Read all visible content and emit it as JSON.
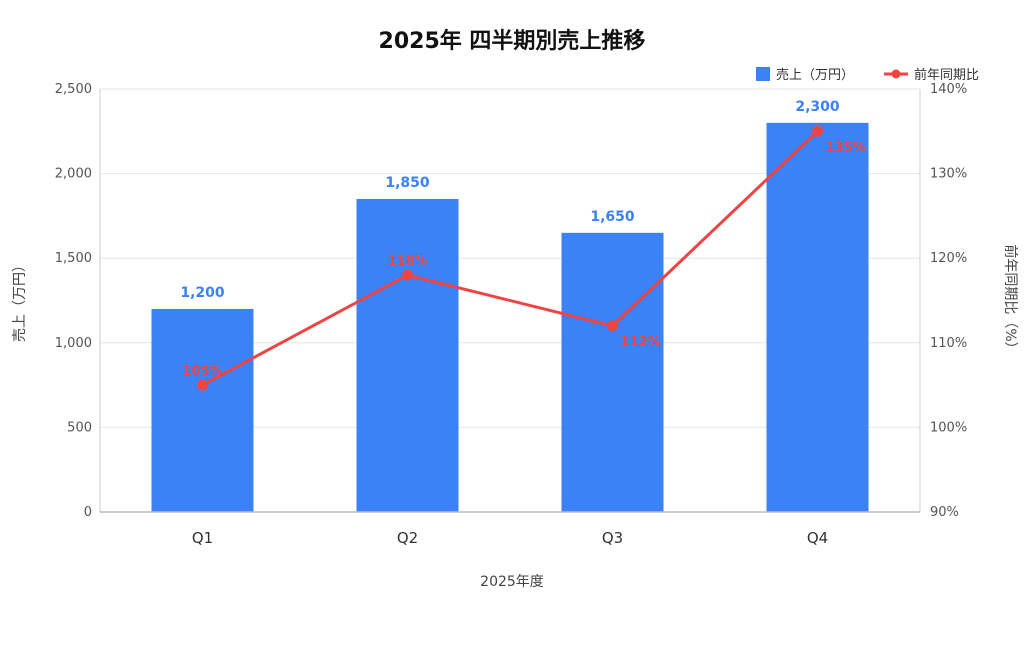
{
  "chart_data": {
    "type": "bar",
    "title": "2025年 四半期別売上推移",
    "categories": [
      "Q1",
      "Q2",
      "Q3",
      "Q4"
    ],
    "xlabel": "2025年度",
    "ylabel": "売上（万円）",
    "y2label": "前年同期比（%）",
    "ylim": [
      0,
      2500
    ],
    "yticks": [
      0,
      500,
      1000,
      1500,
      2000,
      2500
    ],
    "ytick_labels": [
      "0",
      "500",
      "1,000",
      "1,500",
      "2,000",
      "2,500"
    ],
    "y2lim": [
      90,
      140
    ],
    "y2ticks": [
      90,
      100,
      110,
      120,
      130,
      140
    ],
    "y2tick_labels": [
      "90%",
      "100%",
      "110%",
      "120%",
      "130%",
      "140%"
    ],
    "grid": true,
    "legend_position": "top-right",
    "series": [
      {
        "name": "売上（万円）",
        "type": "bar",
        "axis": "left",
        "color": "#3b82f6",
        "values": [
          1200,
          1850,
          1650,
          2300
        ],
        "labels": [
          "1,200",
          "1,850",
          "1,650",
          "2,300"
        ]
      },
      {
        "name": "前年同期比",
        "type": "line",
        "axis": "right",
        "color": "#ef4444",
        "values": [
          105,
          118,
          112,
          135
        ],
        "labels": [
          "105%",
          "118%",
          "112%",
          "135%"
        ]
      }
    ]
  }
}
